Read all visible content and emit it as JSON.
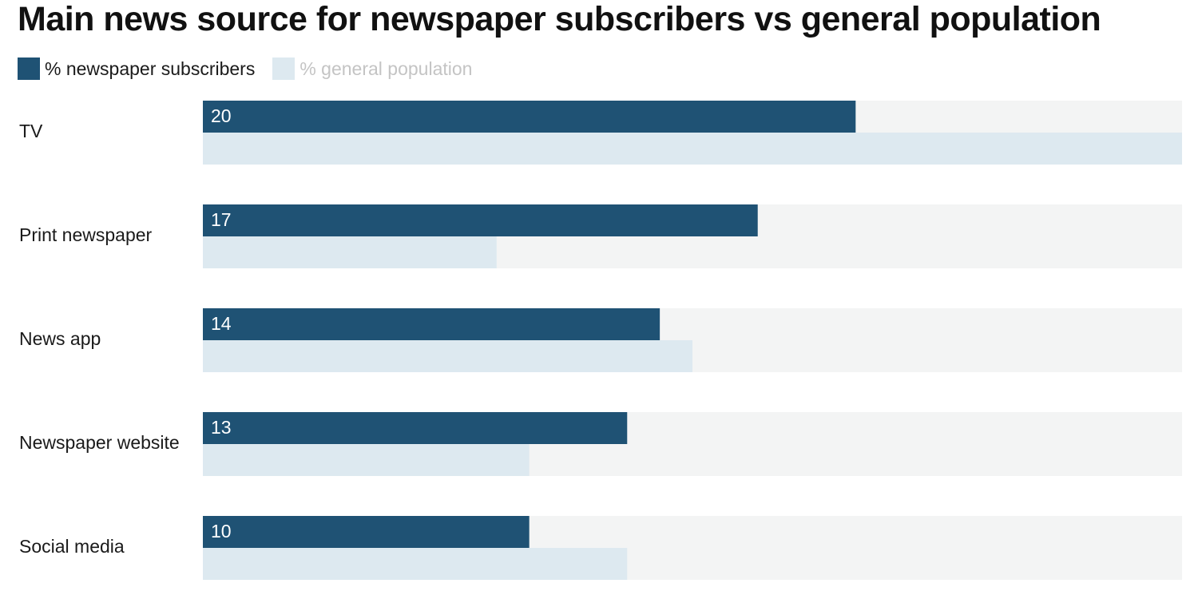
{
  "chart_data": {
    "type": "bar",
    "orientation": "horizontal",
    "title": "Main news source for newspaper subscribers vs general population",
    "categories": [
      "TV",
      "Print newspaper",
      "News app",
      "Newspaper website",
      "Social media"
    ],
    "series": [
      {
        "name": "% newspaper subscribers",
        "values": [
          20,
          17,
          14,
          13,
          10
        ],
        "color": "#1f5274",
        "value_labels_shown": true
      },
      {
        "name": "% general population",
        "values": [
          30,
          9,
          15,
          10,
          13
        ],
        "color": "#dde9f0",
        "value_labels_shown": false
      }
    ],
    "xlim": [
      0,
      30
    ],
    "track_color": "#f3f4f4",
    "legend_position": "top-left",
    "legend_label_colors": [
      "#1a1a1a",
      "#c4c4c4"
    ],
    "grid": false,
    "xlabel": "",
    "ylabel": ""
  }
}
